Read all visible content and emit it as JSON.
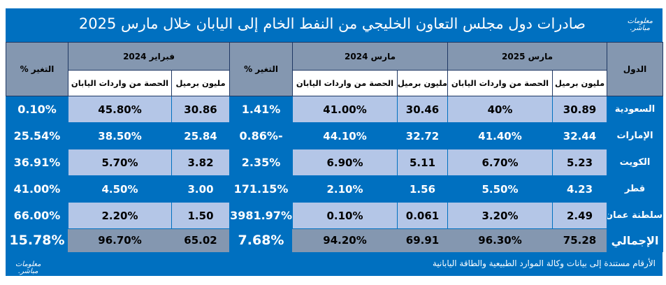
{
  "title": "صادرات دول مجلس التعاون الخليجي من النفط الخام إلى اليابان خلال مارس 2025",
  "logo": [
    "معلومات",
    "مباشر."
  ],
  "headers": {
    "country": "الدول",
    "mar2025": "مارس 2025",
    "mar2024": "مارس 2024",
    "feb2024": "فبراير 2024",
    "change": "التغير %",
    "mbbl": "مليون برميل",
    "share": "الحصة من واردات اليابان"
  },
  "rows": [
    {
      "country": "السعودية",
      "mar25_mbbl": "30.89",
      "mar25_share": "40%",
      "mar24_mbbl": "30.46",
      "mar24_share": "41.00%",
      "chg1": "1.41%",
      "feb24_mbbl": "30.86",
      "feb24_share": "45.80%",
      "chg2": "0.10%"
    },
    {
      "country": "الإمارات",
      "mar25_mbbl": "32.44",
      "mar25_share": "41.40%",
      "mar24_mbbl": "32.72",
      "mar24_share": "44.10%",
      "chg1": "-0.86%",
      "feb24_mbbl": "25.84",
      "feb24_share": "38.50%",
      "chg2": "25.54%"
    },
    {
      "country": "الكويت",
      "mar25_mbbl": "5.23",
      "mar25_share": "6.70%",
      "mar24_mbbl": "5.11",
      "mar24_share": "6.90%",
      "chg1": "2.35%",
      "feb24_mbbl": "3.82",
      "feb24_share": "5.70%",
      "chg2": "36.91%"
    },
    {
      "country": "قطر",
      "mar25_mbbl": "4.23",
      "mar25_share": "5.50%",
      "mar24_mbbl": "1.56",
      "mar24_share": "2.10%",
      "chg1": "171.15%",
      "feb24_mbbl": "3.00",
      "feb24_share": "4.50%",
      "chg2": "41.00%"
    },
    {
      "country": "سلطنة عمان",
      "mar25_mbbl": "2.49",
      "mar25_share": "3.20%",
      "mar24_mbbl": "0.061",
      "mar24_share": "0.10%",
      "chg1": "3981.97%",
      "feb24_mbbl": "1.50",
      "feb24_share": "2.20%",
      "chg2": "66.00%"
    }
  ],
  "total": {
    "country": "الإجمالي",
    "mar25_mbbl": "75.28",
    "mar25_share": "96.30%",
    "mar24_mbbl": "69.91",
    "mar24_share": "94.20%",
    "chg1": "7.68%",
    "feb24_mbbl": "65.02",
    "feb24_share": "96.70%",
    "chg2": "15.78%"
  },
  "footnote": "الأرقام مستندة إلى بيانات وكالة الموارد الطبيعية والطاقة اليابانية"
}
